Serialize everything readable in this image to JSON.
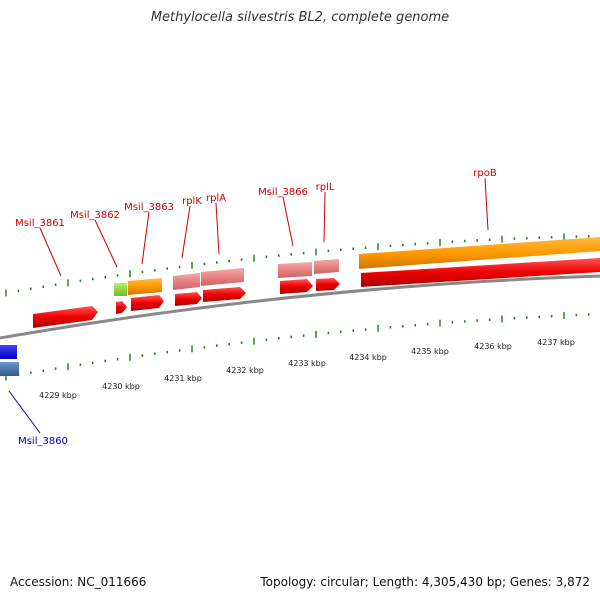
{
  "title": "Methylocella silvestris BL2, complete genome",
  "footer": {
    "accession": "Accession: NC_011666",
    "summary": "Topology: circular; Length: 4,305,430 bp; Genes: 3,872"
  },
  "colors": {
    "forward_cds": "#ee0000",
    "rrna_orange": "#ff9900",
    "ribosomal_pink": "#e88080",
    "trna_green": "#99dd33",
    "reverse_blue": "#0000ee",
    "reverse_steel": "#4477aa",
    "backbone": "#888888",
    "tick_green": "#228822",
    "label_red": "#cc0000",
    "label_blue": "#0000aa"
  },
  "scale": {
    "labels": [
      "4229 kbp",
      "4230 kbp",
      "4231 kbp",
      "4232 kbp",
      "4233 kbp",
      "4234 kbp",
      "4235 kbp",
      "4236 kbp",
      "4237 kbp"
    ]
  },
  "genes": [
    {
      "label": "Msil_3860",
      "strand": "reverse"
    },
    {
      "label": "Msil_3861",
      "strand": "forward"
    },
    {
      "label": "Msil_3862",
      "strand": "forward"
    },
    {
      "label": "Msil_3863",
      "strand": "forward"
    },
    {
      "label": "rplK",
      "strand": "forward"
    },
    {
      "label": "rplA",
      "strand": "forward"
    },
    {
      "label": "Msil_3866",
      "strand": "forward"
    },
    {
      "label": "rplL",
      "strand": "forward"
    },
    {
      "label": "rpoB",
      "strand": "forward"
    }
  ]
}
